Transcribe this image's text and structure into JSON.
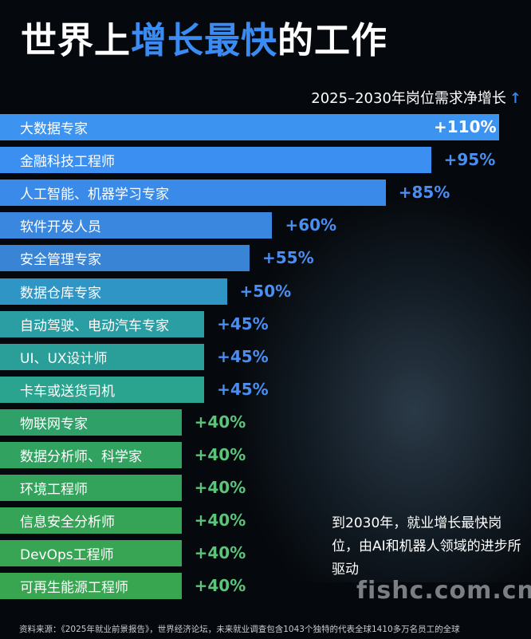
{
  "title": {
    "part1": "世界上",
    "highlight": "增长最快",
    "part2": "的工作"
  },
  "subtitle": "2025–2030年岗位需求净增长",
  "subtitle_arrow": "↑",
  "chart_data": {
    "type": "bar",
    "orientation": "horizontal",
    "title": "世界上增长最快的工作",
    "value_label": "2025–2030年岗位需求净增长",
    "categories": [
      "大数据专家",
      "金融科技工程师",
      "人工智能、机器学习专家",
      "软件开发人员",
      "安全管理专家",
      "数据仓库专家",
      "自动驾驶、电动汽车专家",
      "UI、UX设计师",
      "卡车或送货司机",
      "物联网专家",
      "数据分析师、科学家",
      "环境工程师",
      "信息安全分析师",
      "DevOps工程师",
      "可再生能源工程师"
    ],
    "values": [
      110,
      95,
      85,
      60,
      55,
      50,
      45,
      45,
      45,
      40,
      40,
      40,
      40,
      40,
      40
    ],
    "value_labels": [
      "+110%",
      "+95%",
      "+85%",
      "+60%",
      "+55%",
      "+50%",
      "+45%",
      "+45%",
      "+45%",
      "+40%",
      "+40%",
      "+40%",
      "+40%",
      "+40%",
      "+40%"
    ],
    "xlim": [
      0,
      110
    ],
    "colors": [
      "#3d93f0",
      "#3b8ff0",
      "#3a8aea",
      "#3a87e0",
      "#3a84d6",
      "#2e95c4",
      "#2b9ea3",
      "#2a9f99",
      "#2aa38f",
      "#2fa067",
      "#31a260",
      "#33a35b",
      "#35a457",
      "#37a553",
      "#38a651"
    ],
    "value_colors": [
      "#ffffff",
      "#4a8ef2",
      "#4a8ef2",
      "#4a8ef2",
      "#4a8ef2",
      "#4a8ef2",
      "#4a8ef2",
      "#4a8ef2",
      "#4a8ef2",
      "#5cc47a",
      "#5cc47a",
      "#5cc47a",
      "#5cc47a",
      "#5cc47a",
      "#5cc47a"
    ]
  },
  "note": "到2030年，就业增长最快岗位，由AI和机器人领域的进步所驱动",
  "watermark": "fishc.com.cn",
  "source": "资料来源：《2025年就业前景报告》，世界经济论坛，未来就业调查包含1043个独特的代表全球1410多万名员工的全球"
}
